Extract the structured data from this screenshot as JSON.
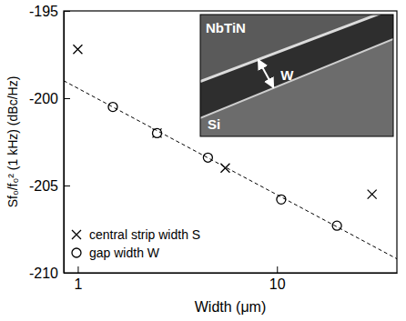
{
  "chart_data": {
    "type": "scatter",
    "x_label": "Width (μm)",
    "y_label": "Sf₀/f₀² (1 kHz) (dBc/Hz)",
    "log": "x",
    "xlim": [
      0.85,
      40
    ],
    "xticks": [
      1,
      10
    ],
    "ylim": [
      -210,
      -195
    ],
    "yticks": [
      -210,
      -205,
      -200,
      -195
    ],
    "legend": "lower left",
    "annotations": [
      "NbTiN",
      "Si",
      "W"
    ],
    "series": [
      {
        "name": "central strip width S",
        "type": "scatter",
        "marker": "x",
        "color": "#000000",
        "x": [
          1,
          2.5,
          5.5,
          30
        ],
        "values": [
          -197.2,
          -202,
          -204,
          -205.5
        ]
      },
      {
        "name": "gap width W",
        "type": "scatter",
        "marker": "circle",
        "color": "#000000",
        "x": [
          1.5,
          2.5,
          4.5,
          10.5,
          20
        ],
        "values": [
          -200.5,
          -202,
          -203.4,
          -205.8,
          -207.3
        ]
      },
      {
        "type": "line",
        "line_style": "dashed",
        "color": "#000000",
        "x": [
          0.85,
          40
        ],
        "values": [
          -199,
          -209.2
        ]
      }
    ]
  }
}
